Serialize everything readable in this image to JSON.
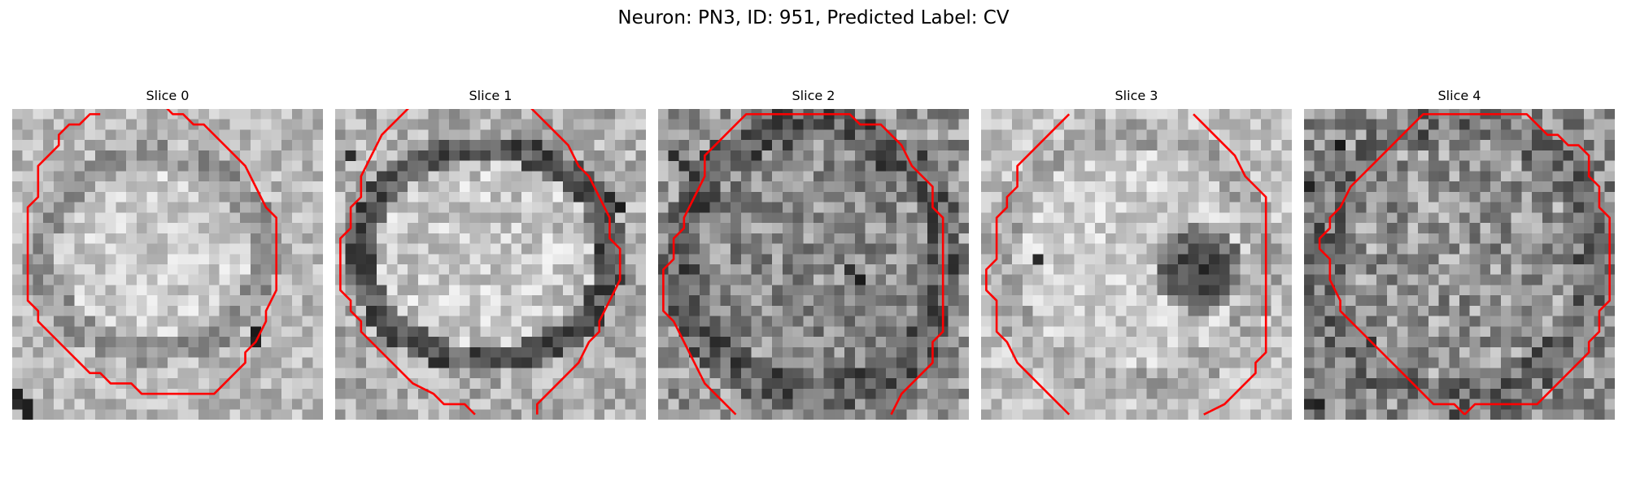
{
  "figure": {
    "title": "Neuron: PN3, ID: 951, Predicted Label: CV",
    "contour_color": "#ff0000",
    "colormap": "gray",
    "panels": [
      {
        "title": "Slice 0"
      },
      {
        "title": "Slice 1"
      },
      {
        "title": "Slice 2"
      },
      {
        "title": "Slice 3"
      },
      {
        "title": "Slice 4"
      }
    ]
  }
}
